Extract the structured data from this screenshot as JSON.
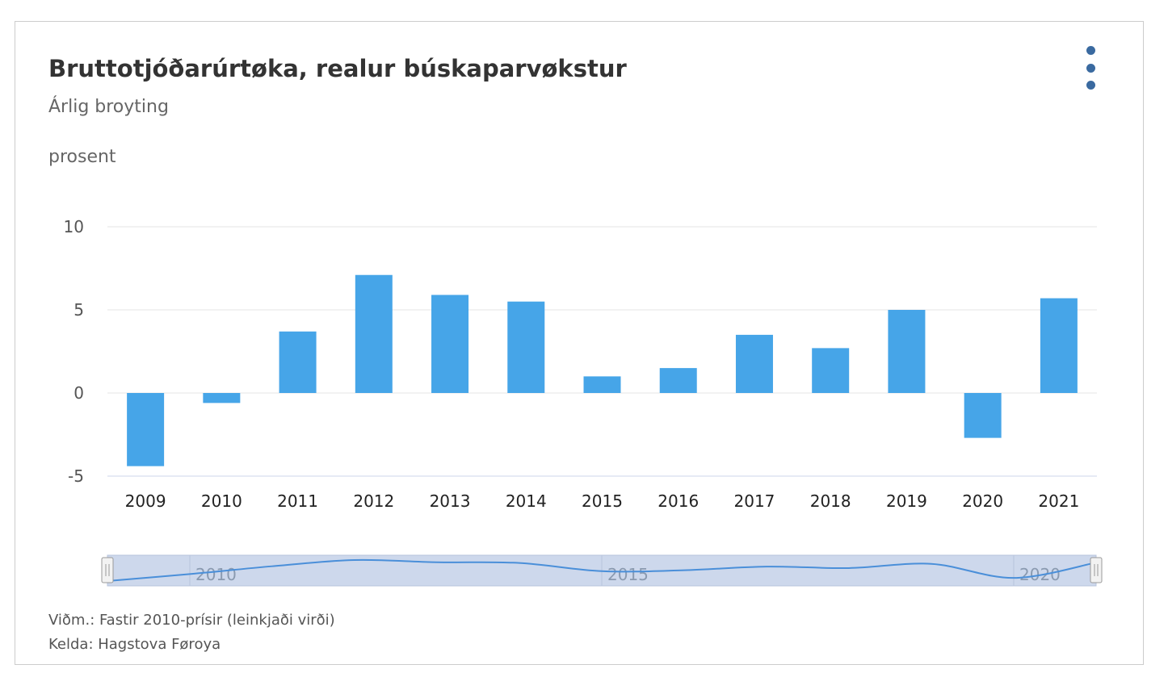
{
  "title": "Bruttotjóðarúrtøka, realur búskaparvøkstur",
  "subtitle": "Árlig broyting",
  "unit_label": "prosent",
  "footer": {
    "note": "Viðm.: Fastir 2010-prísir (leinkjaði virði)",
    "source": "Kelda: Hagstova Føroya"
  },
  "menu_icon": "kebab-menu-icon",
  "colors": {
    "bar": "#46a5e8",
    "navigator_fill": "#cdd8ec",
    "navigator_line": "#4a8fd9",
    "grid": "#e6e6e6",
    "menu": "#3a6aa0"
  },
  "chart_data": {
    "type": "bar",
    "categories": [
      "2009",
      "2010",
      "2011",
      "2012",
      "2013",
      "2014",
      "2015",
      "2016",
      "2017",
      "2018",
      "2019",
      "2020",
      "2021"
    ],
    "values": [
      -4.4,
      -0.6,
      3.7,
      7.1,
      5.9,
      5.5,
      1.0,
      1.5,
      3.5,
      2.7,
      5.0,
      -2.7,
      5.7
    ],
    "ylabel": "prosent",
    "ylim": [
      -5,
      10
    ],
    "yticks": [
      "-5",
      "0",
      "5",
      "10"
    ],
    "grid": true,
    "legend": "none",
    "navigator_labels": [
      "2010",
      "2015",
      "2020"
    ]
  }
}
